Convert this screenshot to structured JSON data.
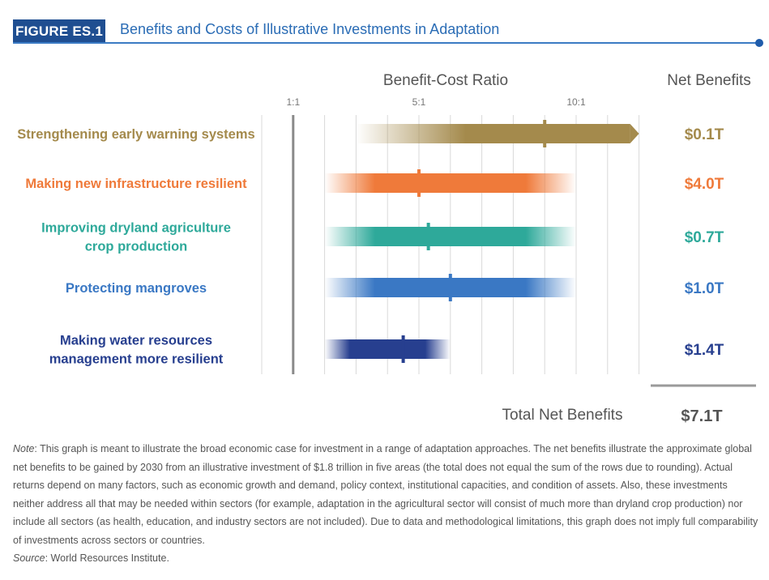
{
  "figure": {
    "label": "FIGURE ES.1",
    "title": "Benefits and Costs of Illustrative Investments in Adaptation"
  },
  "colors": {
    "header_blue": "#1f4e91",
    "title_blue": "#2a6cb5"
  },
  "chart_data": {
    "type": "range-bar",
    "axis_title": "Benefit-Cost Ratio",
    "net_benefits_header": "Net Benefits",
    "x_ticks": [
      {
        "value": 1,
        "label": "1:1"
      },
      {
        "value": 5,
        "label": "5:1"
      },
      {
        "value": 10,
        "label": "10:1"
      }
    ],
    "xlim": [
      0,
      12
    ],
    "grid": true,
    "series": [
      {
        "label_lines": [
          "Strengthening early warning systems"
        ],
        "min": 3,
        "max": 12,
        "open_ended": true,
        "point": 9,
        "net_benefit": "$0.1T",
        "color": "#a48a4c"
      },
      {
        "label_lines": [
          "Making new infrastructure resilient"
        ],
        "min": 2,
        "max": 10,
        "open_ended": false,
        "point": 5,
        "net_benefit": "$4.0T",
        "color": "#ef7a3a"
      },
      {
        "label_lines": [
          "Improving dryland agriculture",
          "crop production"
        ],
        "min": 2,
        "max": 10,
        "open_ended": false,
        "point": 5.3,
        "net_benefit": "$0.7T",
        "color": "#2ea99a"
      },
      {
        "label_lines": [
          "Protecting mangroves"
        ],
        "min": 2,
        "max": 10,
        "open_ended": false,
        "point": 6,
        "net_benefit": "$1.0T",
        "color": "#3a78c4"
      },
      {
        "label_lines": [
          "Making water resources",
          "management more resilient"
        ],
        "min": 2,
        "max": 6,
        "open_ended": false,
        "point": 4.5,
        "net_benefit": "$1.4T",
        "color": "#273f8f"
      }
    ],
    "total_label": "Total Net Benefits",
    "total_value": "$7.1T"
  },
  "note": {
    "label": "Note",
    "text": ": This graph is meant to illustrate the broad economic case for investment in a range of adaptation approaches. The net benefits illustrate the approximate global net benefits to be gained by 2030 from an illustrative investment of $1.8 trillion in five areas (the total does not equal the sum of the rows due to rounding). Actual returns depend on many factors, such as economic growth and demand, policy context, institutional capacities, and condition of assets. Also, these investments neither address all that may be needed within sectors (for example, adaptation in the agricultural sector will consist of much more than dryland crop production) nor include all sectors (as health, education, and industry sectors are not included). Due to data and methodological limitations, this graph does not imply full comparability of investments across sectors or countries.",
    "source_label": "Source",
    "source_text": ": World Resources Institute."
  }
}
